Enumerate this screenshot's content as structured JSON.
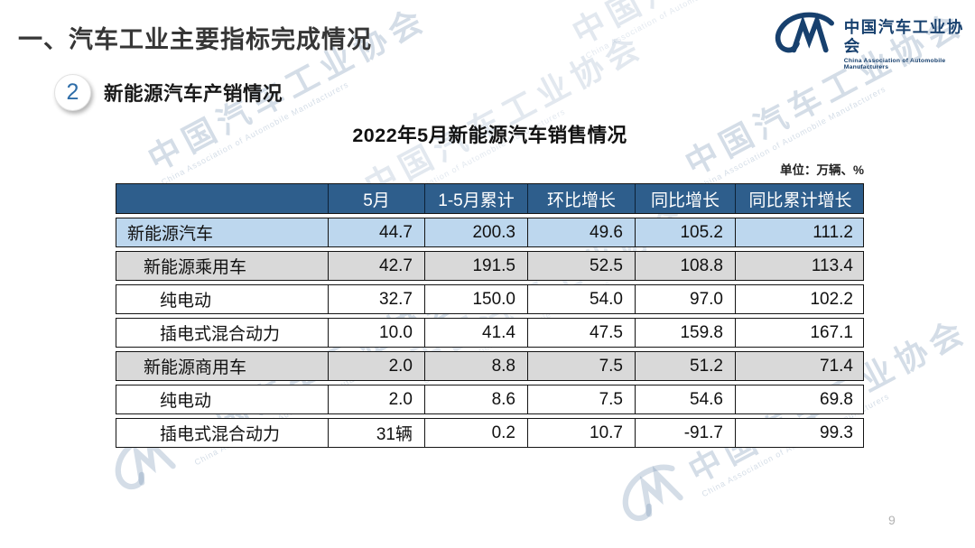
{
  "slide": {
    "title": "一、汽车工业主要指标完成情况",
    "section_number": "2",
    "section_title": "新能源汽车产销情况",
    "page_number": "9"
  },
  "logo": {
    "mark": "CM",
    "name_cn": "中国汽车工业协会",
    "name_en": "China Association of Automobile Manufacturers",
    "color": "#17406E"
  },
  "watermark": {
    "text_cn": "中国汽车工业协会",
    "text_en": "China Association of Automobile Manufacturers"
  },
  "table": {
    "title": "2022年5月新能源汽车销售情况",
    "unit_note": "单位：万辆、%",
    "columns": [
      "",
      "5月",
      "1-5月累计",
      "环比增长",
      "同比增长",
      "同比累计增长"
    ],
    "rows": [
      {
        "label": "新能源汽车",
        "indent": 0,
        "style": "highlight-blue",
        "values": [
          "44.7",
          "200.3",
          "49.6",
          "105.2",
          "111.2"
        ]
      },
      {
        "label": "新能源乘用车",
        "indent": 1,
        "style": "highlight-gray",
        "values": [
          "42.7",
          "191.5",
          "52.5",
          "108.8",
          "113.4"
        ]
      },
      {
        "label": "纯电动",
        "indent": 2,
        "style": "plain",
        "values": [
          "32.7",
          "150.0",
          "54.0",
          "97.0",
          "102.2"
        ]
      },
      {
        "label": "插电式混合动力",
        "indent": 2,
        "style": "plain",
        "values": [
          "10.0",
          "41.4",
          "47.5",
          "159.8",
          "167.1"
        ]
      },
      {
        "label": "新能源商用车",
        "indent": 1,
        "style": "highlight-gray",
        "values": [
          "2.0",
          "8.8",
          "7.5",
          "51.2",
          "71.4"
        ]
      },
      {
        "label": "纯电动",
        "indent": 2,
        "style": "plain",
        "values": [
          "2.0",
          "8.6",
          "7.5",
          "54.6",
          "69.8"
        ]
      },
      {
        "label": "插电式混合动力",
        "indent": 2,
        "style": "plain",
        "values": [
          "31辆",
          "0.2",
          "10.7",
          "-91.7",
          "99.3"
        ]
      }
    ],
    "colors": {
      "header_bg": "#2E5E8C",
      "header_text": "#FFFFFF",
      "row_blue": "#BDD7EE",
      "row_gray": "#D9D9D9",
      "border": "#141414"
    }
  }
}
